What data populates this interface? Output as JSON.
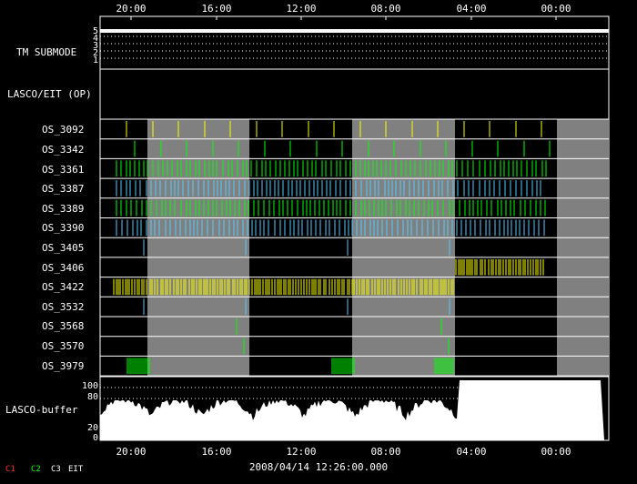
{
  "axis": {
    "top_ticks": [
      "20:00",
      "16:00",
      "12:00",
      "08:00",
      "04:00",
      "00:00"
    ],
    "bottom_ticks": [
      "20:00",
      "16:00",
      "12:00",
      "08:00",
      "04:00",
      "00:00"
    ],
    "timestamp": "2008/04/14 12:26:00.000"
  },
  "panels": {
    "submode": {
      "label": "TM SUBMODE",
      "levels": [
        "5",
        "4",
        "3",
        "2",
        "1"
      ]
    },
    "op": {
      "label": "LASCO/EIT (OP)"
    },
    "buffer": {
      "label": "LASCO-buffer",
      "levels": [
        "100",
        "80",
        "20",
        "0"
      ]
    }
  },
  "rows": [
    {
      "label": "OS_3092",
      "color": "#ffff00",
      "pattern": "sparse"
    },
    {
      "label": "OS_3342",
      "color": "#00ff00",
      "pattern": "sparse"
    },
    {
      "label": "OS_3361",
      "color": "#00ff00",
      "pattern": "dense"
    },
    {
      "label": "OS_3387",
      "color": "#55ccff",
      "pattern": "dense"
    },
    {
      "label": "OS_3389",
      "color": "#00ff00",
      "pattern": "dense"
    },
    {
      "label": "OS_3390",
      "color": "#55ccff",
      "pattern": "dense"
    },
    {
      "label": "OS_3405",
      "color": "#55ccff",
      "pattern": "rare"
    },
    {
      "label": "OS_3406",
      "color": "#ffff00",
      "pattern": "block-late"
    },
    {
      "label": "OS_3422",
      "color": "#ffff00",
      "pattern": "block-early"
    },
    {
      "label": "OS_3532",
      "color": "#55ccff",
      "pattern": "rare"
    },
    {
      "label": "OS_3568",
      "color": "#00ff00",
      "pattern": "single"
    },
    {
      "label": "OS_3570",
      "color": "#00ff00",
      "pattern": "single"
    },
    {
      "label": "OS_3979",
      "color": "#00ff00",
      "pattern": "clusters"
    }
  ],
  "legend": [
    {
      "text": "C1",
      "color": "#ff3030"
    },
    {
      "text": "C2",
      "color": "#00ff00"
    },
    {
      "text": "C3",
      "color": "#ffffff"
    },
    {
      "text": "EIT",
      "color": "#ffffff"
    }
  ],
  "colors": {
    "shade": "#808080",
    "grid": "#ffffff",
    "background": "#000000"
  }
}
